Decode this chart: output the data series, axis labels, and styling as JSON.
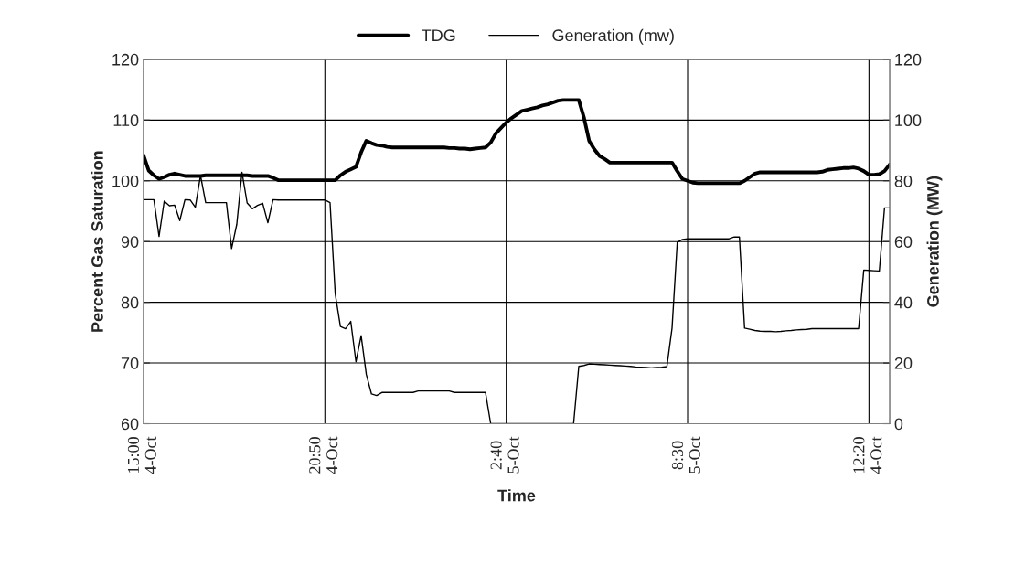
{
  "chart_data": {
    "type": "line",
    "xlabel": "Time",
    "ylabel": "Percent Gas Saturation",
    "y2label": "Generation (MW)",
    "categories": [
      "15:00\n4-Oct",
      null,
      null,
      null,
      null,
      null,
      null,
      null,
      null,
      null,
      null,
      null,
      null,
      null,
      null,
      null,
      null,
      null,
      null,
      null,
      null,
      null,
      null,
      null,
      null,
      null,
      null,
      null,
      null,
      null,
      null,
      null,
      null,
      null,
      null,
      "20:50\n4-Oct",
      null,
      null,
      null,
      null,
      null,
      null,
      null,
      null,
      null,
      null,
      null,
      null,
      null,
      null,
      null,
      null,
      null,
      null,
      null,
      null,
      null,
      null,
      null,
      null,
      null,
      null,
      null,
      null,
      null,
      null,
      null,
      null,
      null,
      null,
      "2:40\n5-Oct",
      null,
      null,
      null,
      null,
      null,
      null,
      null,
      null,
      null,
      null,
      null,
      null,
      null,
      null,
      null,
      null,
      null,
      null,
      null,
      null,
      null,
      null,
      null,
      null,
      null,
      null,
      null,
      null,
      null,
      null,
      null,
      null,
      null,
      null,
      "8:30\n5-Oct",
      null,
      null,
      null,
      null,
      null,
      null,
      null,
      null,
      null,
      null,
      null,
      null,
      null,
      null,
      null,
      null,
      null,
      null,
      null,
      null,
      null,
      null,
      null,
      null,
      null,
      null,
      null,
      null,
      null,
      null,
      null,
      null,
      null,
      null,
      "12:20\n4-Oct",
      null,
      null,
      null,
      null
    ],
    "ylim": [
      60,
      120
    ],
    "yticks": [
      60,
      70,
      80,
      90,
      100,
      110,
      120
    ],
    "y2lim": [
      0,
      120
    ],
    "y2ticks": [
      0,
      20,
      40,
      60,
      80,
      100,
      120
    ],
    "grid": true,
    "legend": "top",
    "series": [
      {
        "name": "TDG",
        "color": "#000000",
        "line_style": "solid",
        "values": [
          104.2,
          101.7,
          100.9,
          100.3,
          100.6,
          101.0,
          101.2,
          101.0,
          100.8,
          100.8,
          100.8,
          100.8,
          100.9,
          100.9,
          100.9,
          100.9,
          100.9,
          100.9,
          100.9,
          100.9,
          100.9,
          100.8,
          100.8,
          100.8,
          100.8,
          100.5,
          100.1,
          100.1,
          100.1,
          100.1,
          100.1,
          100.1,
          100.1,
          100.1,
          100.1,
          100.1,
          100.1,
          100.1,
          100.9,
          101.5,
          101.9,
          102.3,
          104.7,
          106.6,
          106.2,
          105.9,
          105.8,
          105.6,
          105.5,
          105.5,
          105.5,
          105.5,
          105.5,
          105.5,
          105.5,
          105.5,
          105.5,
          105.5,
          105.5,
          105.4,
          105.4,
          105.3,
          105.3,
          105.2,
          105.3,
          105.4,
          105.5,
          106.3,
          107.8,
          108.7,
          109.6,
          110.3,
          110.9,
          111.5,
          111.7,
          111.9,
          112.1,
          112.4,
          112.6,
          112.9,
          113.2,
          113.3,
          113.3,
          113.3,
          113.3,
          110.4,
          106.6,
          105.2,
          104.1,
          103.6,
          103.0,
          103.0,
          103.0,
          103.0,
          103.0,
          103.0,
          103.0,
          103.0,
          103.0,
          103.0,
          103.0,
          103.0,
          103.0,
          101.6,
          100.3,
          100.0,
          99.7,
          99.6,
          99.6,
          99.6,
          99.6,
          99.6,
          99.6,
          99.6,
          99.6,
          99.6,
          100.0,
          100.6,
          101.2,
          101.4,
          101.4,
          101.4,
          101.4,
          101.4,
          101.4,
          101.4,
          101.4,
          101.4,
          101.4,
          101.4,
          101.4,
          101.5,
          101.8,
          101.9,
          102.0,
          102.1,
          102.1,
          102.2,
          102.0,
          101.6,
          101.0,
          101.0,
          101.1,
          101.6,
          102.7
        ]
      },
      {
        "name": "Generation (mw)",
        "color": "#000000",
        "axis": "y2",
        "line_style": "solid",
        "values": [
          73.8,
          73.8,
          73.8,
          61.7,
          73.3,
          71.8,
          72.0,
          66.9,
          73.8,
          73.7,
          71.3,
          81.8,
          72.8,
          72.8,
          72.8,
          72.8,
          72.8,
          57.7,
          65.7,
          82.8,
          72.7,
          70.8,
          71.9,
          72.6,
          66.2,
          73.8,
          73.7,
          73.7,
          73.7,
          73.7,
          73.7,
          73.7,
          73.7,
          73.7,
          73.7,
          73.7,
          72.8,
          42.8,
          32.0,
          31.3,
          33.7,
          20.4,
          29.0,
          16.2,
          9.8,
          9.3,
          10.3,
          10.3,
          10.3,
          10.3,
          10.3,
          10.3,
          10.3,
          10.8,
          10.8,
          10.8,
          10.8,
          10.8,
          10.8,
          10.8,
          10.3,
          10.3,
          10.3,
          10.3,
          10.3,
          10.3,
          10.3,
          0,
          0,
          0,
          0,
          0,
          0,
          0,
          0,
          0,
          0,
          0,
          0,
          0,
          0,
          0,
          0,
          0,
          18.9,
          19.2,
          19.7,
          19.6,
          19.5,
          19.4,
          19.3,
          19.2,
          19.1,
          19.0,
          18.9,
          18.7,
          18.6,
          18.5,
          18.4,
          18.5,
          18.6,
          18.8,
          31.5,
          59.7,
          60.7,
          60.9,
          60.9,
          60.9,
          60.9,
          60.9,
          60.9,
          60.9,
          60.9,
          60.9,
          61.5,
          61.5,
          31.5,
          31.1,
          30.7,
          30.5,
          30.4,
          30.4,
          30.3,
          30.4,
          30.6,
          30.7,
          30.9,
          31.0,
          31.1,
          31.3,
          31.3,
          31.3,
          31.3,
          31.3,
          31.3,
          31.3,
          31.3,
          31.3,
          31.3,
          50.6,
          50.5,
          50.4,
          50.3,
          71.1,
          71.1
        ]
      }
    ]
  }
}
